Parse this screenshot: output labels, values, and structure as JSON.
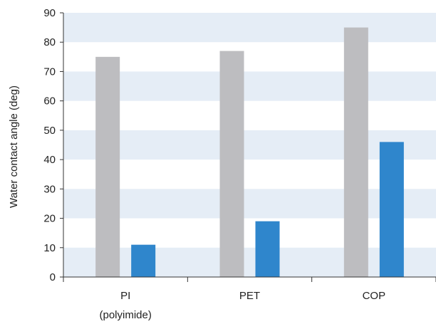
{
  "chart_data": {
    "type": "bar",
    "title": "",
    "xlabel": "",
    "ylabel": "Water contact angle (deg)",
    "ylim": [
      0,
      90
    ],
    "yticks": [
      0,
      10,
      20,
      30,
      40,
      50,
      60,
      70,
      80,
      90
    ],
    "grid": "horizontal bands",
    "categories": [
      "PI",
      "PET",
      "COP"
    ],
    "category_sublabels": [
      "(polyimide)",
      "",
      ""
    ],
    "series": [
      {
        "color": "#bdbdc0",
        "values": [
          75,
          77,
          85
        ]
      },
      {
        "color": "#2f86cc",
        "values": [
          11,
          19,
          46
        ]
      }
    ],
    "band_color": "#e5edf6"
  }
}
